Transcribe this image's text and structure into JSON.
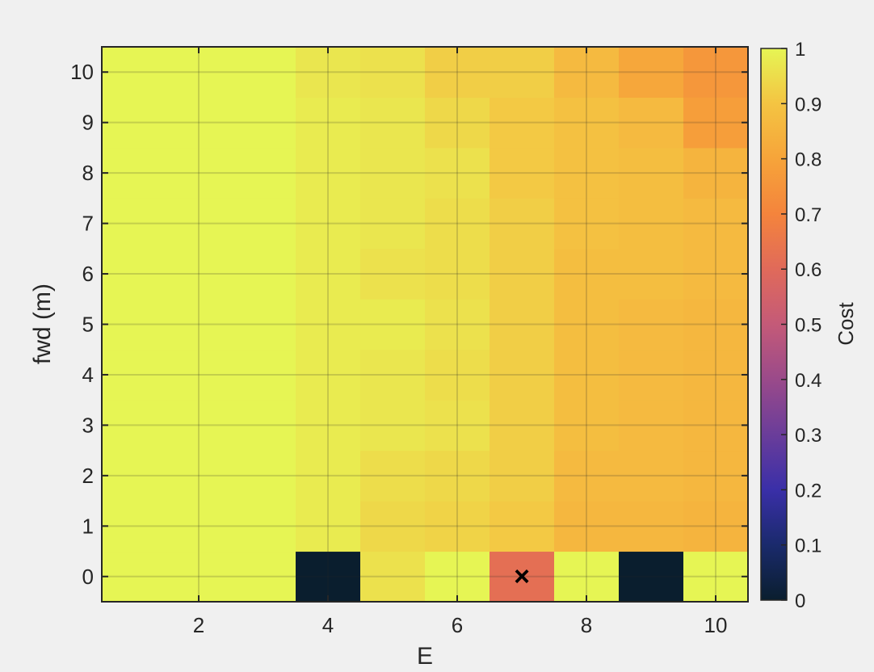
{
  "chart_data": {
    "type": "heatmap",
    "title": "",
    "xlabel": "E",
    "ylabel": "fwd (m)",
    "x": [
      1,
      2,
      3,
      4,
      5,
      6,
      7,
      8,
      9,
      10
    ],
    "y": [
      0,
      1,
      2,
      3,
      4,
      5,
      6,
      7,
      8,
      9,
      10
    ],
    "xlim": [
      0.5,
      10.5
    ],
    "ylim": [
      -0.5,
      10.5
    ],
    "xticks": [
      2,
      4,
      6,
      8,
      10
    ],
    "yticks": [
      0,
      1,
      2,
      3,
      4,
      5,
      6,
      7,
      8,
      9,
      10
    ],
    "grid": true,
    "z_rows_note_free": true,
    "z": [
      [
        1.0,
        1.0,
        1.0,
        0.0,
        0.96,
        1.0,
        0.62,
        1.0,
        0.0,
        1.0
      ],
      [
        1.0,
        1.0,
        1.0,
        0.98,
        0.94,
        0.93,
        0.91,
        0.86,
        0.86,
        0.85
      ],
      [
        1.0,
        1.0,
        1.0,
        0.98,
        0.95,
        0.94,
        0.92,
        0.87,
        0.87,
        0.86
      ],
      [
        1.0,
        1.0,
        1.0,
        0.98,
        0.97,
        0.96,
        0.92,
        0.88,
        0.87,
        0.86
      ],
      [
        1.0,
        1.0,
        1.0,
        0.98,
        0.97,
        0.95,
        0.92,
        0.88,
        0.87,
        0.86
      ],
      [
        1.0,
        1.0,
        1.0,
        0.98,
        0.98,
        0.96,
        0.92,
        0.88,
        0.87,
        0.86
      ],
      [
        1.0,
        1.0,
        1.0,
        0.98,
        0.96,
        0.95,
        0.92,
        0.88,
        0.88,
        0.87
      ],
      [
        1.0,
        1.0,
        1.0,
        0.98,
        0.97,
        0.95,
        0.92,
        0.89,
        0.88,
        0.87
      ],
      [
        1.0,
        1.0,
        1.0,
        0.98,
        0.97,
        0.96,
        0.91,
        0.89,
        0.88,
        0.85
      ],
      [
        1.0,
        1.0,
        1.0,
        0.98,
        0.97,
        0.94,
        0.91,
        0.89,
        0.87,
        0.78
      ],
      [
        1.0,
        1.0,
        1.0,
        0.97,
        0.96,
        0.92,
        0.92,
        0.87,
        0.81,
        0.76
      ]
    ],
    "marker": {
      "x": 7,
      "y": 0,
      "symbol": "×"
    },
    "colorbar": {
      "label": "Cost",
      "min": 0,
      "max": 1,
      "ticks": [
        0,
        0.1,
        0.2,
        0.3,
        0.4,
        0.5,
        0.6,
        0.7,
        0.8,
        0.9,
        1
      ],
      "tick_labels": [
        "0",
        "0.1",
        "0.2",
        "0.3",
        "0.4",
        "0.5",
        "0.6",
        "0.7",
        "0.8",
        "0.9",
        "1"
      ],
      "colormap": [
        "#0a1e2e",
        "#1a2a6c",
        "#3a2fa8",
        "#6a3d9a",
        "#9a4a8a",
        "#c45a78",
        "#e06a5a",
        "#f4843c",
        "#f6a43a",
        "#f4c442",
        "#e6f554"
      ]
    },
    "colors": {
      "background": "#f0f0f0",
      "axes_edge": "#262626",
      "grid": "#262626",
      "marker": "#000000"
    }
  }
}
